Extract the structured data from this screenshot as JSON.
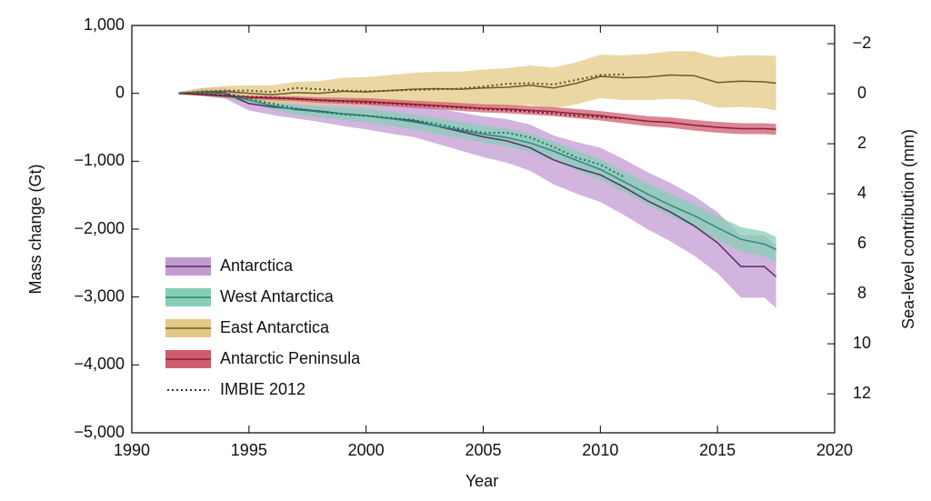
{
  "chart_data": {
    "type": "line",
    "xlabel": "Year",
    "ylabel": "Mass change (Gt)",
    "y2label": "Sea-level contribution (mm)",
    "x": [
      1992,
      1993,
      1994,
      1995,
      1996,
      1997,
      1998,
      1999,
      2000,
      2001,
      2002,
      2003,
      2004,
      2005,
      2006,
      2007,
      2008,
      2009,
      2010,
      2011,
      2012,
      2013,
      2014,
      2015,
      2016,
      2017,
      2017.5
    ],
    "xlim": [
      1990,
      2020
    ],
    "xticks": [
      1990,
      1995,
      2000,
      2005,
      2010,
      2015,
      2020
    ],
    "ylim": [
      -5000,
      1000
    ],
    "yticks": [
      {
        "value": -5000,
        "label": "−5,000"
      },
      {
        "value": -4000,
        "label": "−4,000"
      },
      {
        "value": -3000,
        "label": "−3,000"
      },
      {
        "value": -2000,
        "label": "−2,000"
      },
      {
        "value": -1000,
        "label": "−1,000"
      },
      0,
      {
        "value": 1000,
        "label": "1,000"
      }
    ],
    "y2lim": [
      13.56,
      -2.73
    ],
    "y2ticks": [
      12,
      10,
      8,
      6,
      4,
      2,
      0,
      {
        "value": -2,
        "label": "−2"
      }
    ],
    "series": [
      {
        "name": "Antarctica",
        "color": "#5a2d63",
        "band_color": "#c39bd3",
        "values": [
          0,
          20,
          0,
          -150,
          -200,
          -230,
          -260,
          -300,
          -330,
          -370,
          -400,
          -480,
          -560,
          -640,
          -700,
          -800,
          -980,
          -1100,
          -1200,
          -1380,
          -1580,
          -1750,
          -1950,
          -2200,
          -2550,
          -2550,
          -2700
        ],
        "errors": [
          20,
          60,
          80,
          100,
          120,
          140,
          160,
          180,
          200,
          220,
          240,
          260,
          280,
          300,
          320,
          340,
          360,
          380,
          400,
          410,
          420,
          430,
          440,
          450,
          460,
          460,
          460
        ]
      },
      {
        "name": "West Antarctica",
        "color": "#2a8a78",
        "band_color": "#86cfb5",
        "values": [
          0,
          0,
          -30,
          -100,
          -180,
          -240,
          -270,
          -300,
          -330,
          -370,
          -420,
          -480,
          -540,
          -600,
          -650,
          -730,
          -850,
          -990,
          -1120,
          -1300,
          -1480,
          -1650,
          -1800,
          -1980,
          -2150,
          -2220,
          -2300
        ],
        "errors": [
          20,
          30,
          40,
          50,
          60,
          70,
          80,
          90,
          100,
          105,
          110,
          115,
          120,
          125,
          130,
          135,
          140,
          145,
          150,
          155,
          160,
          165,
          170,
          175,
          180,
          185,
          185
        ]
      },
      {
        "name": "East Antarctica",
        "color": "#6b5a2a",
        "band_color": "#e3c985",
        "values": [
          0,
          20,
          30,
          0,
          -20,
          10,
          0,
          30,
          20,
          40,
          60,
          70,
          60,
          80,
          90,
          120,
          80,
          150,
          250,
          230,
          240,
          270,
          260,
          160,
          180,
          170,
          150
        ],
        "errors": [
          20,
          60,
          80,
          120,
          140,
          160,
          180,
          200,
          220,
          230,
          240,
          250,
          260,
          270,
          280,
          290,
          300,
          310,
          320,
          330,
          340,
          350,
          360,
          370,
          380,
          390,
          400
        ]
      },
      {
        "name": "Antarctic Peninsula",
        "color": "#8e1f33",
        "band_color": "#cf5d70",
        "values": [
          0,
          -20,
          -40,
          -60,
          -70,
          -80,
          -100,
          -110,
          -120,
          -140,
          -160,
          -180,
          -200,
          -220,
          -230,
          -250,
          -270,
          -300,
          -330,
          -370,
          -410,
          -430,
          -470,
          -500,
          -520,
          -520,
          -530
        ],
        "errors": [
          10,
          15,
          20,
          25,
          30,
          35,
          40,
          45,
          50,
          52,
          54,
          56,
          58,
          60,
          62,
          64,
          66,
          68,
          70,
          72,
          74,
          76,
          78,
          80,
          80,
          80,
          80
        ]
      }
    ],
    "reference": {
      "name": "IMBIE 2012",
      "color": "#333333",
      "lines": [
        {
          "color": "#5e4e1e",
          "values": [
            0,
            30,
            40,
            40,
            20,
            80,
            60,
            40,
            30,
            40,
            50,
            60,
            70,
            100,
            140,
            150,
            130,
            200,
            270,
            280,
            null,
            null,
            null,
            null,
            null,
            null,
            null
          ]
        },
        {
          "color": "#7a1628",
          "values": [
            0,
            -10,
            -30,
            -50,
            -60,
            -80,
            -100,
            -120,
            -140,
            -150,
            -170,
            -190,
            -210,
            -230,
            -250,
            -270,
            -300,
            -330,
            -350,
            -370,
            null,
            null,
            null,
            null,
            null,
            null,
            null
          ]
        },
        {
          "color": "#1f7565",
          "values": [
            0,
            20,
            10,
            -80,
            -150,
            -220,
            -270,
            -310,
            -330,
            -360,
            -390,
            -450,
            -520,
            -580,
            -580,
            -650,
            -790,
            -950,
            -1050,
            -1230,
            null,
            null,
            null,
            null,
            null,
            null,
            null
          ]
        }
      ]
    }
  }
}
